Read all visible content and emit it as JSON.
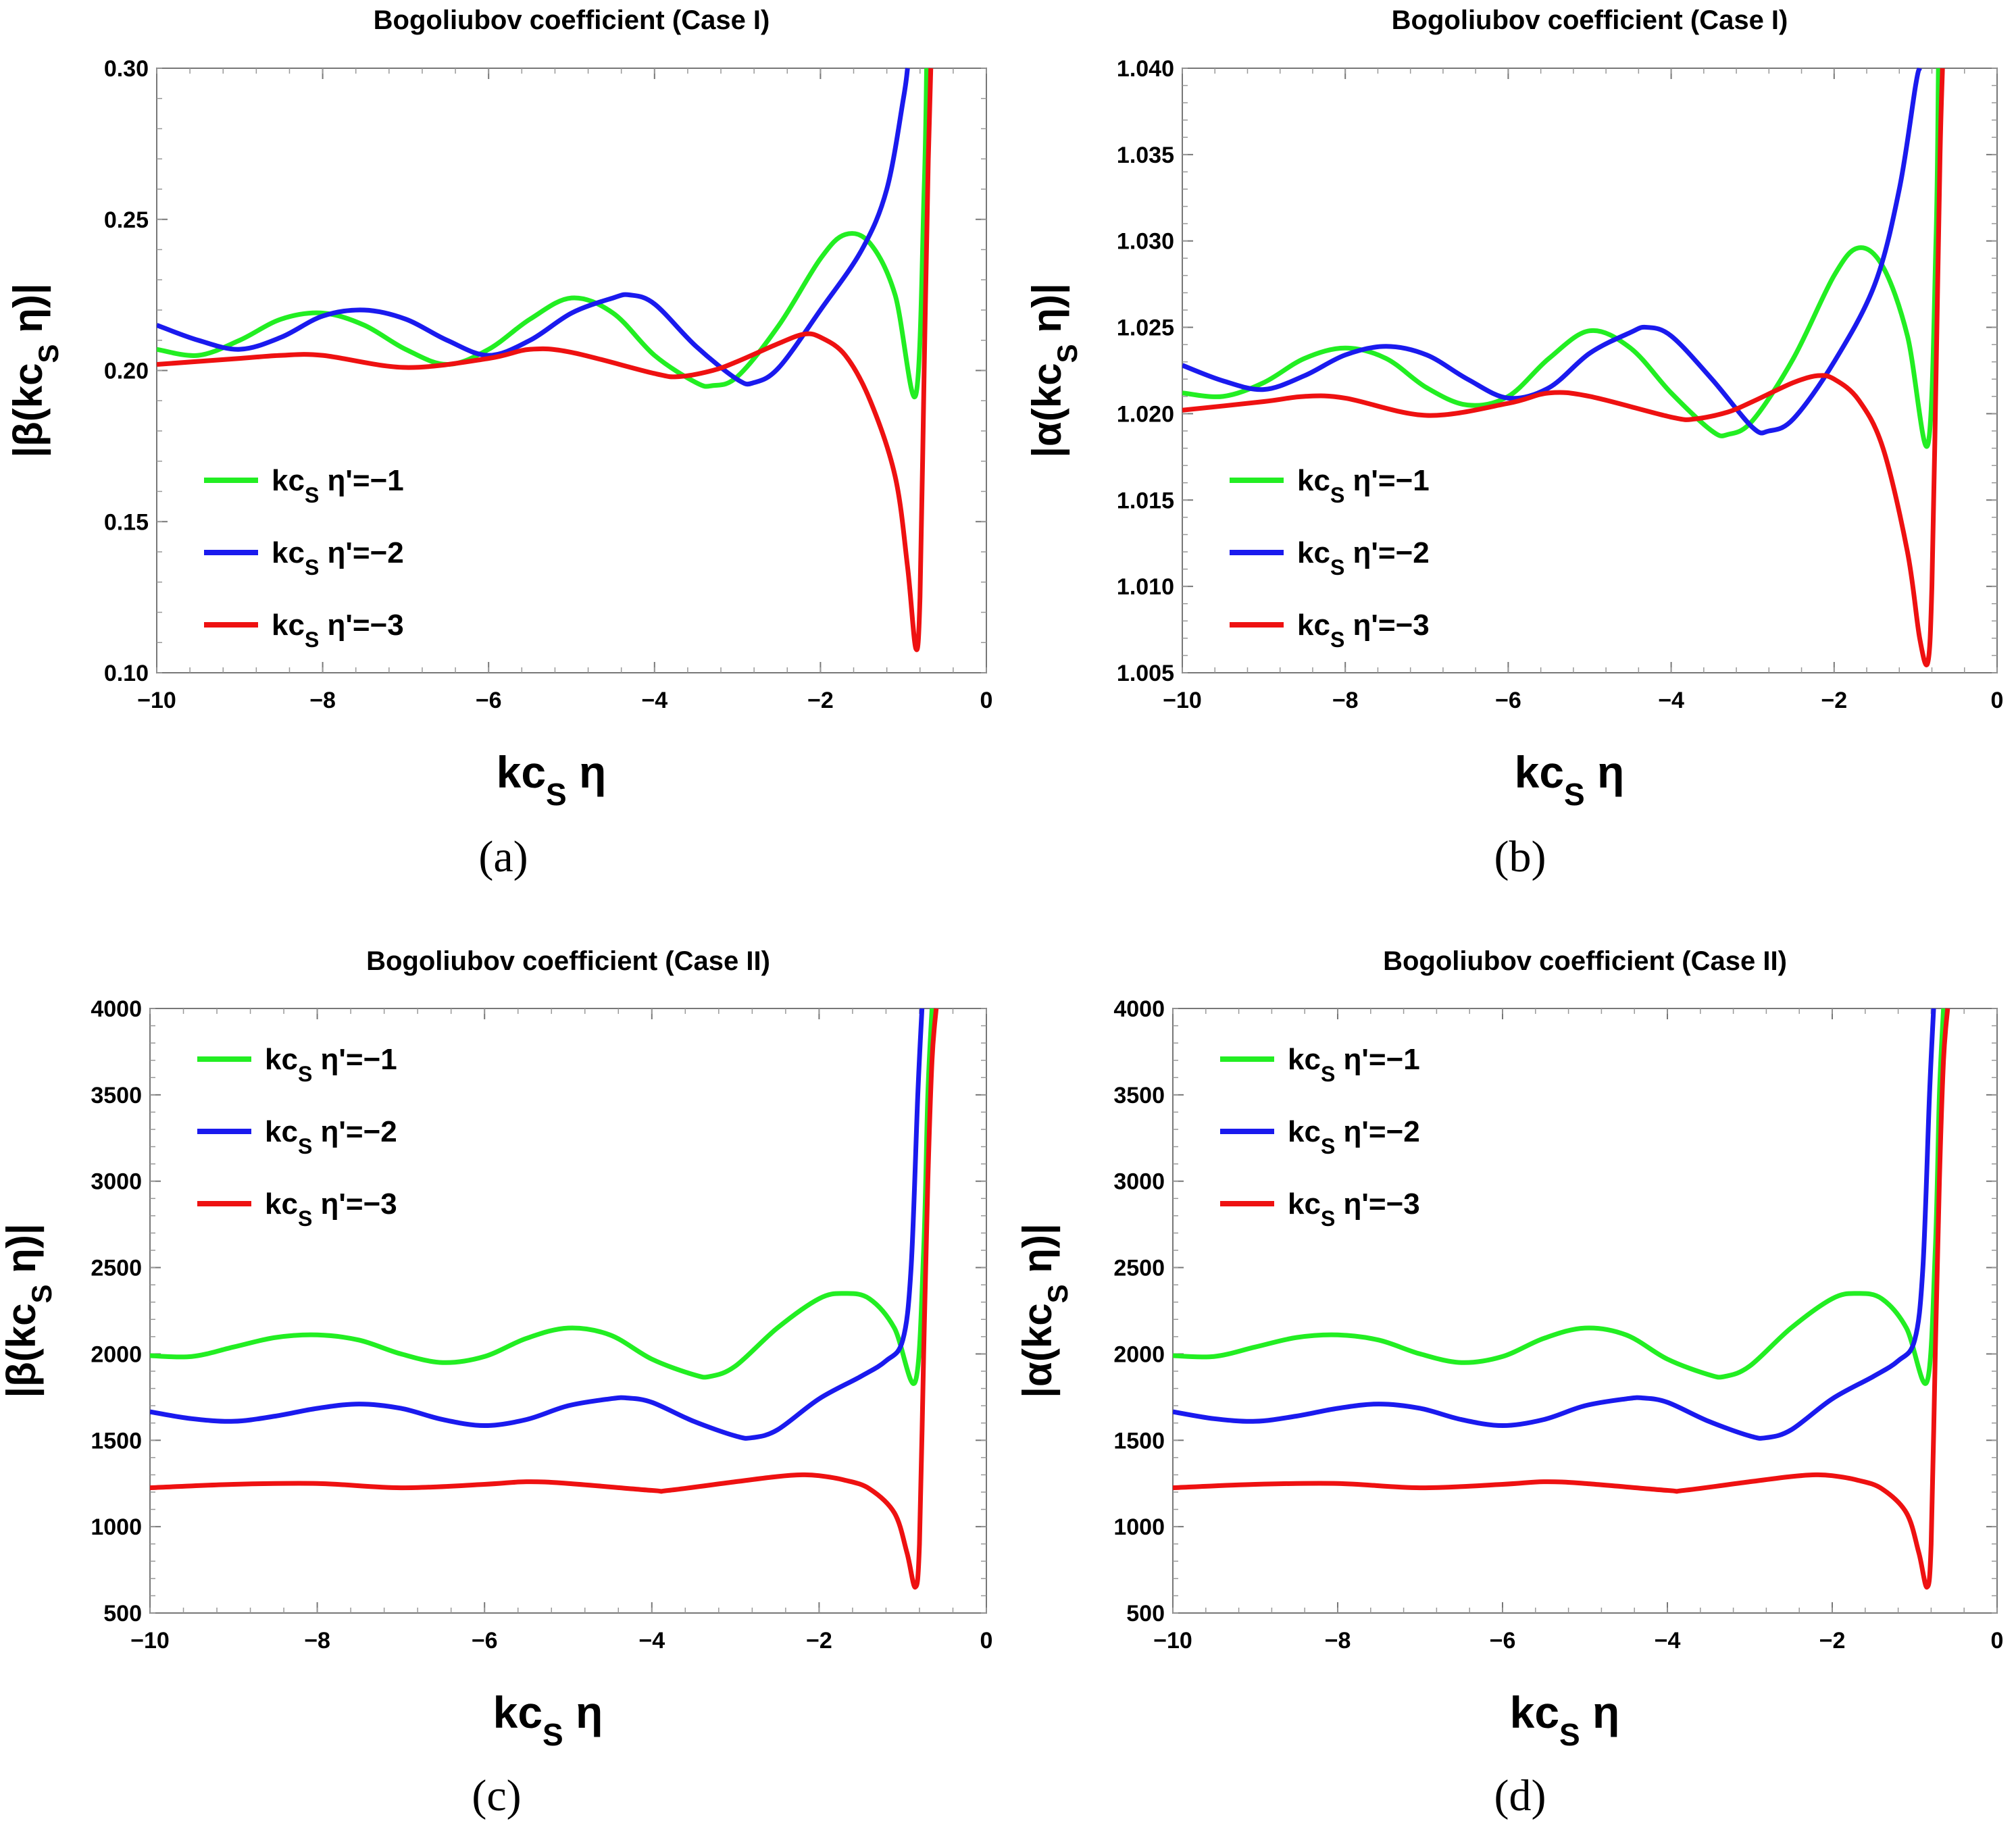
{
  "chart_data": [
    {
      "type": "line",
      "title": "Bogoliubov coefficient (Case I)",
      "xlabel": "kc_S η",
      "ylabel": "|β(kc_S η)|",
      "caption": "(a)",
      "xlim": [
        -10,
        0
      ],
      "ylim": [
        0.1,
        0.3
      ],
      "xticks": [
        "−10",
        "−8",
        "−6",
        "−4",
        "−2",
        "0"
      ],
      "yticks": [
        "0.10",
        "0.15",
        "0.20",
        "0.25",
        "0.30"
      ],
      "legend_position": "lower-left",
      "series": [
        {
          "name": "kc_S η'=−1",
          "color": "#22ee22",
          "x": [
            -10,
            -9.5,
            -9,
            -8.5,
            -8,
            -7.5,
            -7,
            -6.5,
            -6,
            -5.5,
            -5,
            -4.5,
            -4,
            -3.5,
            -3.3,
            -3,
            -2.5,
            -2,
            -1.7,
            -1.4,
            -1.1,
            -0.85,
            -0.75,
            -0.72
          ],
          "y": [
            0.207,
            0.205,
            0.21,
            0.217,
            0.219,
            0.215,
            0.207,
            0.202,
            0.207,
            0.217,
            0.224,
            0.219,
            0.205,
            0.196,
            0.195,
            0.198,
            0.215,
            0.237,
            0.245,
            0.242,
            0.225,
            0.192,
            0.26,
            0.3
          ]
        },
        {
          "name": "kc_S η'=−2",
          "color": "#1a1aee",
          "x": [
            -10,
            -9.5,
            -9,
            -8.5,
            -8,
            -7.5,
            -7,
            -6.5,
            -6,
            -5.5,
            -5,
            -4.5,
            -4.3,
            -4,
            -3.5,
            -3,
            -2.8,
            -2.5,
            -2,
            -1.5,
            -1.2,
            -1.0,
            -0.95
          ],
          "y": [
            0.215,
            0.21,
            0.207,
            0.211,
            0.218,
            0.22,
            0.217,
            0.21,
            0.205,
            0.21,
            0.219,
            0.224,
            0.225,
            0.222,
            0.208,
            0.197,
            0.196,
            0.201,
            0.22,
            0.24,
            0.26,
            0.29,
            0.3
          ]
        },
        {
          "name": "kc_S η'=−3",
          "color": "#ee1111",
          "x": [
            -10,
            -9,
            -8.5,
            -8,
            -7,
            -6,
            -5.5,
            -5,
            -4,
            -3.7,
            -3.3,
            -3,
            -2.5,
            -2.2,
            -2,
            -1.7,
            -1.4,
            -1.1,
            -0.95,
            -0.85,
            -0.8,
            -0.75,
            -0.7,
            -0.67
          ],
          "y": [
            0.202,
            0.204,
            0.205,
            0.205,
            0.201,
            0.204,
            0.207,
            0.206,
            0.199,
            0.198,
            0.2,
            0.203,
            0.209,
            0.212,
            0.211,
            0.205,
            0.19,
            0.165,
            0.135,
            0.108,
            0.125,
            0.2,
            0.27,
            0.3
          ]
        }
      ]
    },
    {
      "type": "line",
      "title": "Bogoliubov coefficient (Case I)",
      "xlabel": "kc_S η",
      "ylabel": "|α(kc_S η)|",
      "caption": "(b)",
      "xlim": [
        -10,
        0
      ],
      "ylim": [
        1.005,
        1.04
      ],
      "xticks": [
        "−10",
        "−8",
        "−6",
        "−4",
        "−2",
        "0"
      ],
      "yticks": [
        "1.005",
        "1.010",
        "1.015",
        "1.020",
        "1.025",
        "1.030",
        "1.035",
        "1.040"
      ],
      "legend_position": "lower-left",
      "series": [
        {
          "name": "kc_S η'=−1",
          "color": "#22ee22",
          "x": [
            -10,
            -9.5,
            -9,
            -8.5,
            -8,
            -7.5,
            -7,
            -6.5,
            -6,
            -5.5,
            -5,
            -4.5,
            -4,
            -3.5,
            -3.3,
            -3,
            -2.5,
            -2,
            -1.7,
            -1.4,
            -1.1,
            -0.85,
            -0.75,
            -0.72
          ],
          "y": [
            1.0212,
            1.021,
            1.0218,
            1.0232,
            1.0238,
            1.0232,
            1.0215,
            1.0205,
            1.021,
            1.0232,
            1.0248,
            1.0238,
            1.0212,
            1.019,
            1.0188,
            1.0196,
            1.0232,
            1.028,
            1.0296,
            1.0285,
            1.0245,
            1.0182,
            1.03,
            1.04
          ]
        },
        {
          "name": "kc_S η'=−2",
          "color": "#1a1aee",
          "x": [
            -10,
            -9.5,
            -9,
            -8.5,
            -8,
            -7.5,
            -7,
            -6.5,
            -6,
            -5.5,
            -5,
            -4.5,
            -4.3,
            -4,
            -3.5,
            -3,
            -2.8,
            -2.5,
            -2,
            -1.5,
            -1.2,
            -1.0,
            -0.95
          ],
          "y": [
            1.0228,
            1.0219,
            1.0214,
            1.0222,
            1.0234,
            1.0239,
            1.0234,
            1.022,
            1.0209,
            1.0215,
            1.0235,
            1.0247,
            1.025,
            1.0245,
            1.022,
            1.0192,
            1.019,
            1.0197,
            1.023,
            1.0275,
            1.033,
            1.039,
            1.04
          ]
        },
        {
          "name": "kc_S η'=−3",
          "color": "#ee1111",
          "x": [
            -10,
            -9,
            -8.5,
            -8,
            -7,
            -6,
            -5.5,
            -5,
            -4,
            -3.7,
            -3.3,
            -3,
            -2.5,
            -2.2,
            -2,
            -1.7,
            -1.4,
            -1.1,
            -0.95,
            -0.85,
            -0.8,
            -0.75,
            -0.7,
            -0.67
          ],
          "y": [
            1.0202,
            1.0207,
            1.021,
            1.0209,
            1.0199,
            1.0206,
            1.0212,
            1.021,
            1.0198,
            1.0197,
            1.0201,
            1.0207,
            1.0218,
            1.0222,
            1.022,
            1.0208,
            1.018,
            1.012,
            1.007,
            1.0056,
            1.01,
            1.022,
            1.035,
            1.04
          ]
        }
      ]
    },
    {
      "type": "line",
      "title": "Bogoliubov coefficient (Case II)",
      "xlabel": "kc_S η",
      "ylabel": "|β(kc_S η)|",
      "caption": "(c)",
      "xlim": [
        -10,
        0
      ],
      "ylim": [
        500,
        4000
      ],
      "xticks": [
        "−10",
        "−8",
        "−6",
        "−4",
        "−2",
        "0"
      ],
      "yticks": [
        "500",
        "1000",
        "1500",
        "2000",
        "2500",
        "3000",
        "3500",
        "4000"
      ],
      "legend_position": "upper-left",
      "series": [
        {
          "name": "kc_S η'=−1",
          "color": "#22ee22",
          "x": [
            -10,
            -9.5,
            -9,
            -8.5,
            -8,
            -7.5,
            -7,
            -6.5,
            -6,
            -5.5,
            -5,
            -4.5,
            -4,
            -3.5,
            -3.3,
            -3,
            -2.5,
            -2,
            -1.7,
            -1.4,
            -1.1,
            -0.85,
            -0.75,
            -0.7,
            -0.65
          ],
          "y": [
            1990,
            1985,
            2040,
            2095,
            2110,
            2080,
            2000,
            1950,
            1985,
            2090,
            2150,
            2110,
            1970,
            1880,
            1870,
            1930,
            2150,
            2320,
            2350,
            2320,
            2150,
            1840,
            2600,
            3500,
            4000
          ]
        },
        {
          "name": "kc_S η'=−2",
          "color": "#1a1aee",
          "x": [
            -10,
            -9.5,
            -9,
            -8.5,
            -8,
            -7.5,
            -7,
            -6.5,
            -6,
            -5.5,
            -5,
            -4.5,
            -4.3,
            -4,
            -3.5,
            -3,
            -2.8,
            -2.5,
            -2,
            -1.5,
            -1.2,
            -1.0,
            -0.9,
            -0.82,
            -0.77
          ],
          "y": [
            1665,
            1625,
            1610,
            1640,
            1685,
            1710,
            1685,
            1620,
            1585,
            1620,
            1700,
            1740,
            1745,
            1720,
            1610,
            1525,
            1515,
            1560,
            1740,
            1870,
            1960,
            2080,
            2500,
            3500,
            4000
          ]
        },
        {
          "name": "kc_S η'=−3",
          "color": "#ee1111",
          "x": [
            -10,
            -9,
            -8,
            -7,
            -6,
            -5.5,
            -5,
            -4,
            -3.8,
            -3,
            -2.5,
            -2.2,
            -2,
            -1.7,
            -1.4,
            -1.1,
            -0.95,
            -0.85,
            -0.8,
            -0.75,
            -0.7,
            -0.65,
            -0.6
          ],
          "y": [
            1225,
            1245,
            1250,
            1225,
            1245,
            1260,
            1250,
            1210,
            1210,
            1260,
            1290,
            1300,
            1295,
            1270,
            1220,
            1080,
            850,
            650,
            900,
            2000,
            3000,
            3700,
            4000
          ]
        }
      ]
    },
    {
      "type": "line",
      "title": "Bogoliubov coefficient (Case II)",
      "xlabel": "kc_S η",
      "ylabel": "|α(kc_S η)|",
      "caption": "(d)",
      "xlim": [
        -10,
        0
      ],
      "ylim": [
        500,
        4000
      ],
      "xticks": [
        "−10",
        "−8",
        "−6",
        "−4",
        "−2",
        "0"
      ],
      "yticks": [
        "500",
        "1000",
        "1500",
        "2000",
        "2500",
        "3000",
        "3500",
        "4000"
      ],
      "legend_position": "upper-left",
      "series": [
        {
          "name": "kc_S η'=−1",
          "color": "#22ee22",
          "x": [
            -10,
            -9.5,
            -9,
            -8.5,
            -8,
            -7.5,
            -7,
            -6.5,
            -6,
            -5.5,
            -5,
            -4.5,
            -4,
            -3.5,
            -3.3,
            -3,
            -2.5,
            -2,
            -1.7,
            -1.4,
            -1.1,
            -0.85,
            -0.75,
            -0.7,
            -0.65
          ],
          "y": [
            1990,
            1985,
            2040,
            2095,
            2110,
            2080,
            2000,
            1950,
            1985,
            2090,
            2150,
            2110,
            1970,
            1880,
            1870,
            1930,
            2150,
            2320,
            2350,
            2320,
            2150,
            1840,
            2600,
            3500,
            4000
          ]
        },
        {
          "name": "kc_S η'=−2",
          "color": "#1a1aee",
          "x": [
            -10,
            -9.5,
            -9,
            -8.5,
            -8,
            -7.5,
            -7,
            -6.5,
            -6,
            -5.5,
            -5,
            -4.5,
            -4.3,
            -4,
            -3.5,
            -3,
            -2.8,
            -2.5,
            -2,
            -1.5,
            -1.2,
            -1.0,
            -0.9,
            -0.82,
            -0.77
          ],
          "y": [
            1665,
            1625,
            1610,
            1640,
            1685,
            1710,
            1685,
            1620,
            1585,
            1620,
            1700,
            1740,
            1745,
            1720,
            1610,
            1525,
            1515,
            1560,
            1740,
            1870,
            1960,
            2080,
            2500,
            3500,
            4000
          ]
        },
        {
          "name": "kc_S η'=−3",
          "color": "#ee1111",
          "x": [
            -10,
            -9,
            -8,
            -7,
            -6,
            -5.5,
            -5,
            -4,
            -3.8,
            -3,
            -2.5,
            -2.2,
            -2,
            -1.7,
            -1.4,
            -1.1,
            -0.95,
            -0.85,
            -0.8,
            -0.75,
            -0.7,
            -0.65,
            -0.6
          ],
          "y": [
            1225,
            1245,
            1250,
            1225,
            1245,
            1260,
            1250,
            1210,
            1210,
            1260,
            1290,
            1300,
            1295,
            1270,
            1220,
            1080,
            850,
            650,
            900,
            2000,
            3000,
            3700,
            4000
          ]
        }
      ]
    }
  ]
}
